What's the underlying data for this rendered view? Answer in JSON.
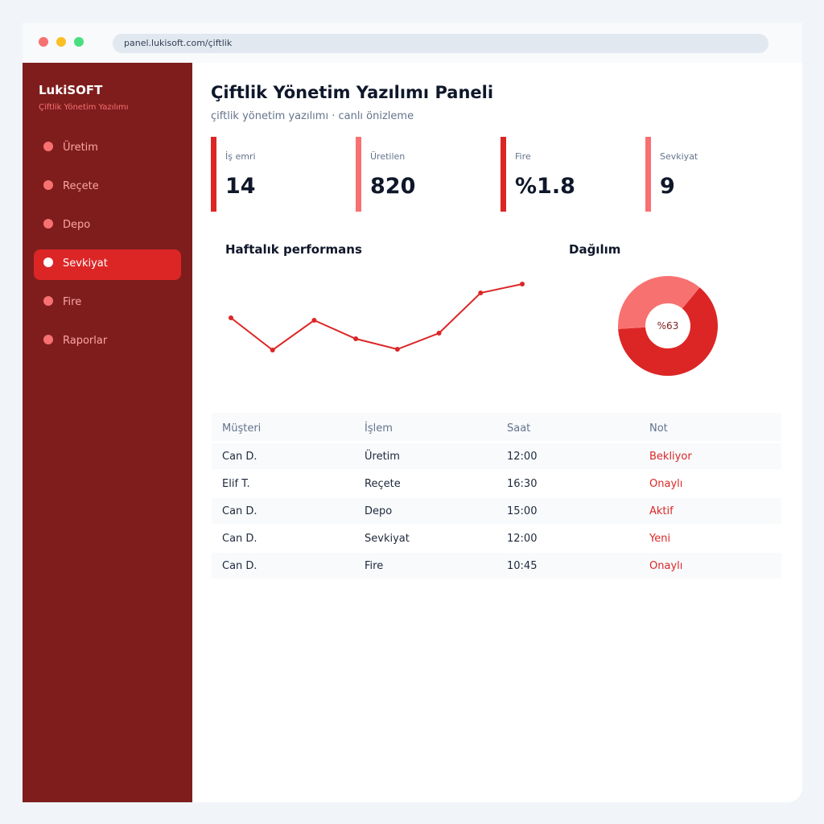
{
  "browser": {
    "url": "panel.lukisoft.com/çiftlik"
  },
  "sidebar": {
    "brand": "LukiSOFT",
    "tagline": "Çiftlik Yönetim Yazılımı",
    "nav": [
      "Üretim",
      "Reçete",
      "Depo",
      "Sevkiyat",
      "Fire",
      "Raporlar"
    ],
    "active": 3
  },
  "header": {
    "title": "Çiftlik Yönetim Yazılımı Paneli",
    "subtitle": "çiftlik yönetim yazılımı · canlı önizleme"
  },
  "kpis": [
    {
      "label": "İş emri",
      "value": "14",
      "color": "#dc2626"
    },
    {
      "label": "Üretilen",
      "value": "820",
      "color": "#f87171"
    },
    {
      "label": "Fire",
      "value": "%1.8",
      "color": "#dc2626"
    },
    {
      "label": "Sevkiyat",
      "value": "9",
      "color": "#f87171"
    }
  ],
  "chart_data": [
    {
      "type": "line",
      "title": "Haftalık performans",
      "values": [
        55,
        15,
        52,
        29,
        16,
        36,
        86,
        97
      ],
      "color": "#dc2626"
    },
    {
      "type": "pie",
      "title": "Dağılım",
      "values": [
        63,
        37
      ],
      "value_labels": [
        "%63",
        null
      ],
      "colors": [
        "#dc2626",
        "#f87171"
      ]
    }
  ],
  "table": {
    "columns": [
      "Müşteri",
      "İşlem",
      "Saat",
      "Not"
    ],
    "rows": [
      [
        "Can D.",
        "Üretim",
        "12:00",
        "Bekliyor"
      ],
      [
        "Elif T.",
        "Reçete",
        "16:30",
        "Onaylı"
      ],
      [
        "Can D.",
        "Depo",
        "15:00",
        "Aktif"
      ],
      [
        "Can D.",
        "Sevkiyat",
        "12:00",
        "Yeni"
      ],
      [
        "Can D.",
        "Fire",
        "10:45",
        "Onaylı"
      ]
    ]
  }
}
